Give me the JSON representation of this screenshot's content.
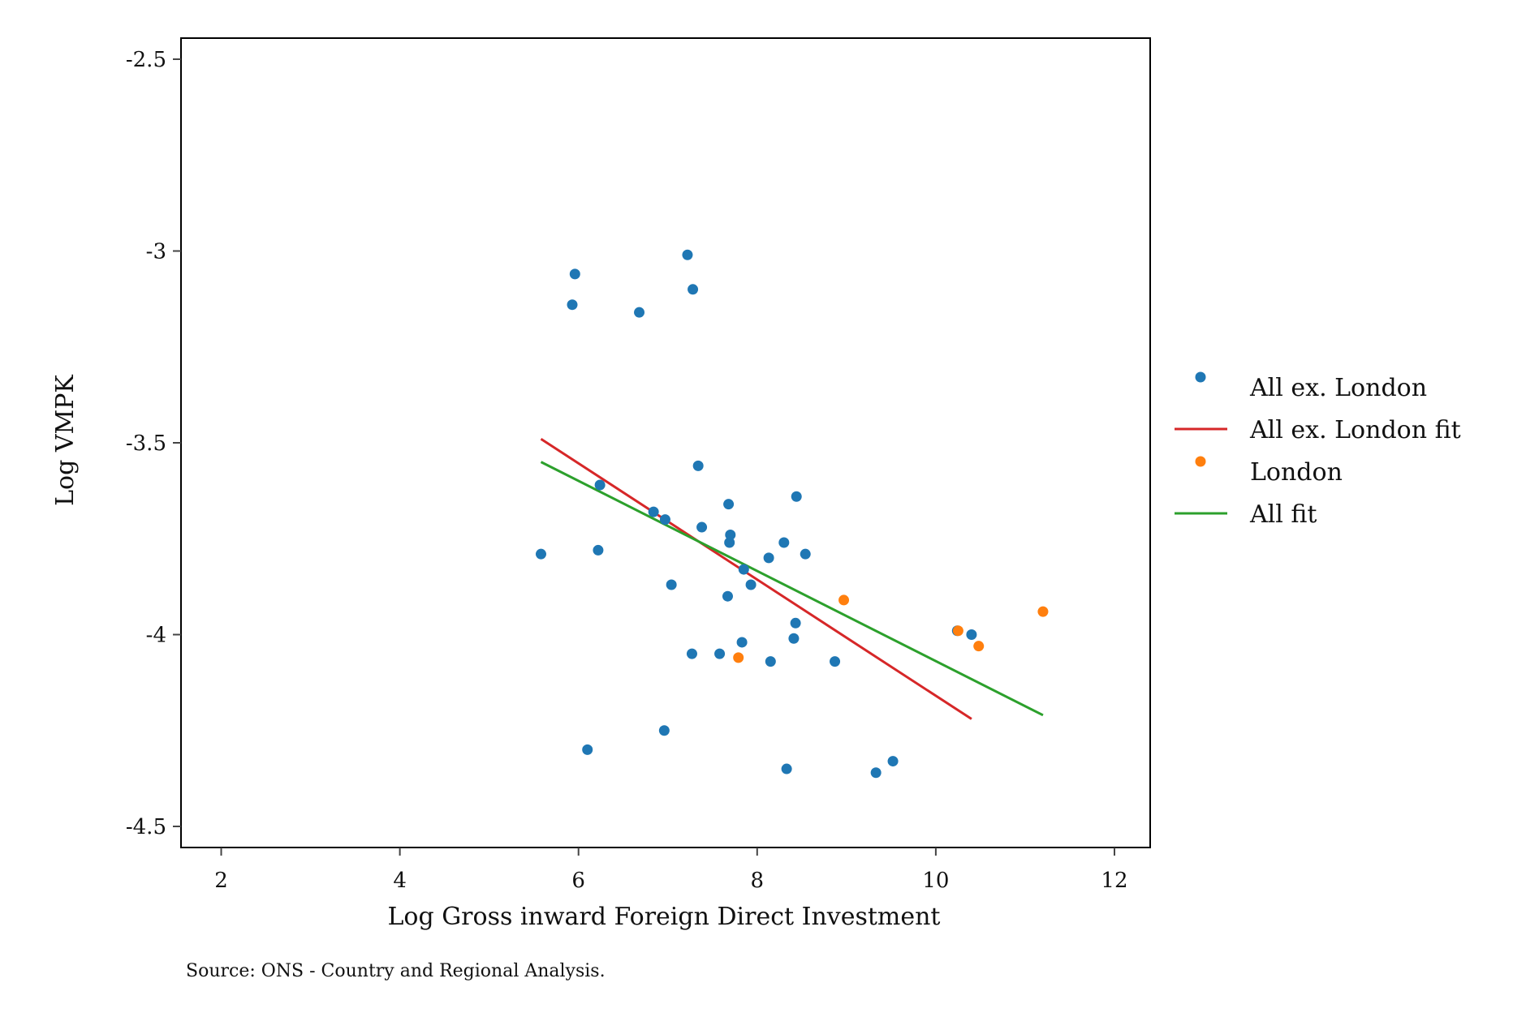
{
  "chart_data": {
    "type": "scatter",
    "xlabel": "Log Gross inward Foreign Direct Investment",
    "ylabel": "Log VMPK",
    "xlim": [
      1.55,
      12.4
    ],
    "ylim": [
      -4.555,
      -2.445
    ],
    "xticks": [
      2,
      4,
      6,
      8,
      10,
      12
    ],
    "xtick_labels": [
      "2",
      "4",
      "6",
      "8",
      "10",
      "12"
    ],
    "yticks": [
      -2.5,
      -3,
      -3.5,
      -4,
      -4.5
    ],
    "ytick_labels": [
      "-2.5",
      "-3",
      "-3.5",
      "-4",
      "-4.5"
    ],
    "grid": false,
    "legend_position": "right",
    "series": [
      {
        "name": "All ex. London",
        "kind": "scatter",
        "color": "#1f77b4",
        "points": [
          {
            "x": 5.58,
            "y": -3.79
          },
          {
            "x": 5.93,
            "y": -3.14
          },
          {
            "x": 5.96,
            "y": -3.06
          },
          {
            "x": 6.1,
            "y": -4.3
          },
          {
            "x": 6.22,
            "y": -3.78
          },
          {
            "x": 6.24,
            "y": -3.61
          },
          {
            "x": 6.68,
            "y": -3.16
          },
          {
            "x": 6.84,
            "y": -3.68
          },
          {
            "x": 6.96,
            "y": -4.25
          },
          {
            "x": 6.97,
            "y": -3.7
          },
          {
            "x": 7.04,
            "y": -3.87
          },
          {
            "x": 7.22,
            "y": -3.01
          },
          {
            "x": 7.27,
            "y": -4.05
          },
          {
            "x": 7.28,
            "y": -3.1
          },
          {
            "x": 7.34,
            "y": -3.56
          },
          {
            "x": 7.38,
            "y": -3.72
          },
          {
            "x": 7.58,
            "y": -4.05
          },
          {
            "x": 7.67,
            "y": -3.9
          },
          {
            "x": 7.68,
            "y": -3.66
          },
          {
            "x": 7.69,
            "y": -3.76
          },
          {
            "x": 7.7,
            "y": -3.74
          },
          {
            "x": 7.83,
            "y": -4.02
          },
          {
            "x": 7.85,
            "y": -3.83
          },
          {
            "x": 7.93,
            "y": -3.87
          },
          {
            "x": 8.13,
            "y": -3.8
          },
          {
            "x": 8.15,
            "y": -4.07
          },
          {
            "x": 8.3,
            "y": -3.76
          },
          {
            "x": 8.33,
            "y": -4.35
          },
          {
            "x": 8.41,
            "y": -4.01
          },
          {
            "x": 8.43,
            "y": -3.97
          },
          {
            "x": 8.44,
            "y": -3.64
          },
          {
            "x": 8.54,
            "y": -3.79
          },
          {
            "x": 8.87,
            "y": -4.07
          },
          {
            "x": 9.33,
            "y": -4.36
          },
          {
            "x": 9.52,
            "y": -4.33
          },
          {
            "x": 10.24,
            "y": -3.99
          },
          {
            "x": 10.4,
            "y": -4.0
          }
        ]
      },
      {
        "name": "All ex. London fit",
        "kind": "line",
        "color": "#d62728",
        "points": [
          {
            "x": 5.58,
            "y": -3.49
          },
          {
            "x": 10.4,
            "y": -4.22
          }
        ]
      },
      {
        "name": "London",
        "kind": "scatter",
        "color": "#ff7f0e",
        "points": [
          {
            "x": 7.79,
            "y": -4.06
          },
          {
            "x": 8.97,
            "y": -3.91
          },
          {
            "x": 10.25,
            "y": -3.99
          },
          {
            "x": 10.48,
            "y": -4.03
          },
          {
            "x": 11.2,
            "y": -3.94
          }
        ]
      },
      {
        "name": "All fit",
        "kind": "line",
        "color": "#2ca02c",
        "points": [
          {
            "x": 5.58,
            "y": -3.55
          },
          {
            "x": 11.2,
            "y": -4.21
          }
        ]
      }
    ]
  },
  "note": "Source: ONS - Country and Regional Analysis."
}
